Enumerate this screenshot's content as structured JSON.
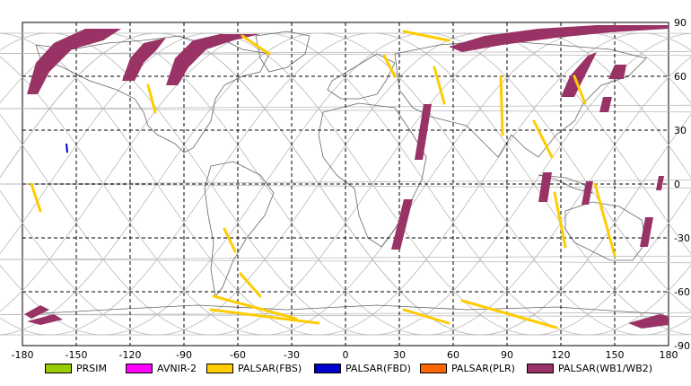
{
  "map": {
    "lon_ticks": [
      "-180",
      "-150",
      "-120",
      "-90",
      "-60",
      "-30",
      "0",
      "30",
      "60",
      "90",
      "120",
      "150",
      "180"
    ],
    "lat_ticks": [
      "90",
      "60",
      "30",
      "0",
      "-30",
      "-60",
      "-90"
    ],
    "lon_range": [
      -180,
      180
    ],
    "lat_range": [
      -90,
      90
    ],
    "grid": "dashed"
  },
  "legend": [
    {
      "label": "PRSIM",
      "color": "#99cc00"
    },
    {
      "label": "AVNIR-2",
      "color": "#ff00ff"
    },
    {
      "label": "PALSAR(FBS)",
      "color": "#ffcc00"
    },
    {
      "label": "PALSAR(FBD)",
      "color": "#0000cc"
    },
    {
      "label": "PALSAR(PLR)",
      "color": "#ff6600"
    },
    {
      "label": "PALSAR(WB1/WB2)",
      "color": "#993366"
    }
  ]
}
